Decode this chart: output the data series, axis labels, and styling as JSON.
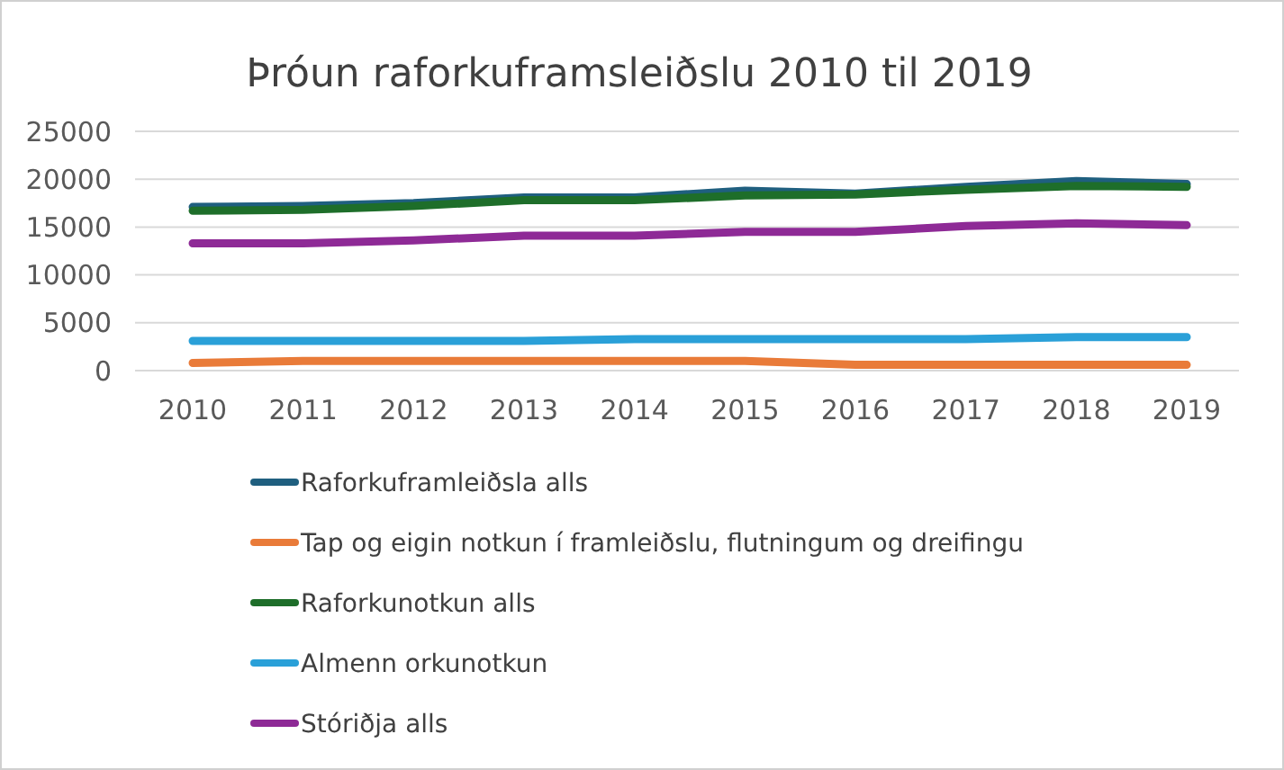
{
  "chart_data": {
    "type": "line",
    "title": "Þróun raforkuframsleiðslu 2010 til 2019",
    "categories": [
      "2010",
      "2011",
      "2012",
      "2013",
      "2014",
      "2015",
      "2016",
      "2017",
      "2018",
      "2019"
    ],
    "series": [
      {
        "name": "Raforkuframleiðsla alls",
        "color": "#1f5f7f",
        "values": [
          17100,
          17200,
          17500,
          18100,
          18100,
          18800,
          18500,
          19200,
          19800,
          19500
        ]
      },
      {
        "name": "Tap og eigin notkun í framleiðslu, flutningum og dreifingu",
        "color": "#e97b39",
        "values": [
          800,
          1000,
          1000,
          1000,
          1000,
          1000,
          600,
          600,
          600,
          600
        ]
      },
      {
        "name": "Raforkunotkun alls",
        "color": "#1e6e2a",
        "values": [
          16700,
          16800,
          17200,
          17800,
          17800,
          18300,
          18400,
          18900,
          19300,
          19200
        ]
      },
      {
        "name": "Almenn orkunotkun",
        "color": "#2aa0d8",
        "values": [
          3100,
          3100,
          3100,
          3100,
          3300,
          3300,
          3300,
          3300,
          3500,
          3500
        ]
      },
      {
        "name": "Stóriðja alls",
        "color": "#8e2a96",
        "values": [
          13300,
          13300,
          13600,
          14100,
          14100,
          14500,
          14500,
          15100,
          15400,
          15200
        ]
      }
    ],
    "ylim": [
      0,
      25000
    ],
    "yticks": [
      0,
      5000,
      10000,
      15000,
      20000,
      25000
    ],
    "grid": "y",
    "legend": "bottom",
    "marker": "none",
    "line_style": "solid"
  }
}
